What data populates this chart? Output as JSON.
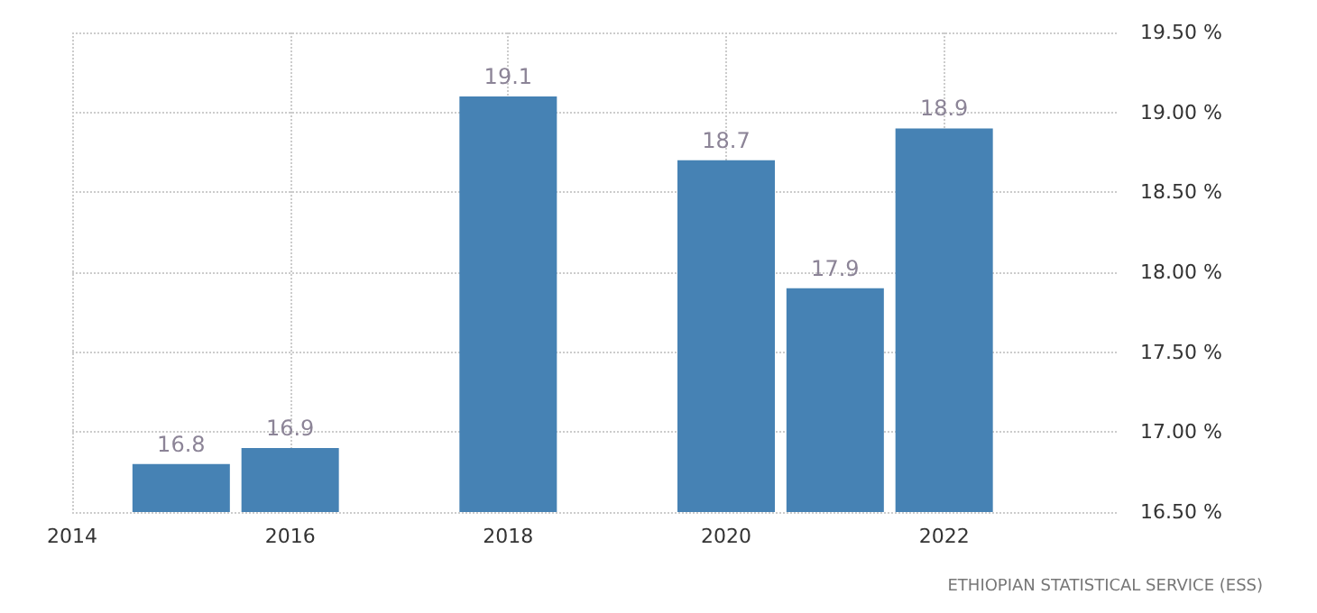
{
  "chart_data": {
    "type": "bar",
    "x": [
      2015,
      2016,
      2018,
      2020,
      2021,
      2022
    ],
    "values": [
      16.8,
      16.9,
      19.1,
      18.7,
      17.9,
      18.9
    ],
    "color": "#4682b4",
    "data_labels": true,
    "xlim": [
      2014,
      2023.6
    ],
    "xticks": [
      2014,
      2016,
      2018,
      2020,
      2022
    ],
    "ylim": [
      16.5,
      19.5
    ],
    "yticks": [
      {
        "value": 16.5,
        "label": "16.50 %"
      },
      {
        "value": 17,
        "label": "17.00 %"
      },
      {
        "value": 17.5,
        "label": "17.50 %"
      },
      {
        "value": 18,
        "label": "18.00 %"
      },
      {
        "value": 18.5,
        "label": "18.50 %"
      },
      {
        "value": 19,
        "label": "19.00 %"
      },
      {
        "value": 19.5,
        "label": "19.50 %"
      }
    ],
    "grid": true,
    "annotations": [
      "ETHIOPIAN STATISTICAL SERVICE (ESS)"
    ]
  }
}
